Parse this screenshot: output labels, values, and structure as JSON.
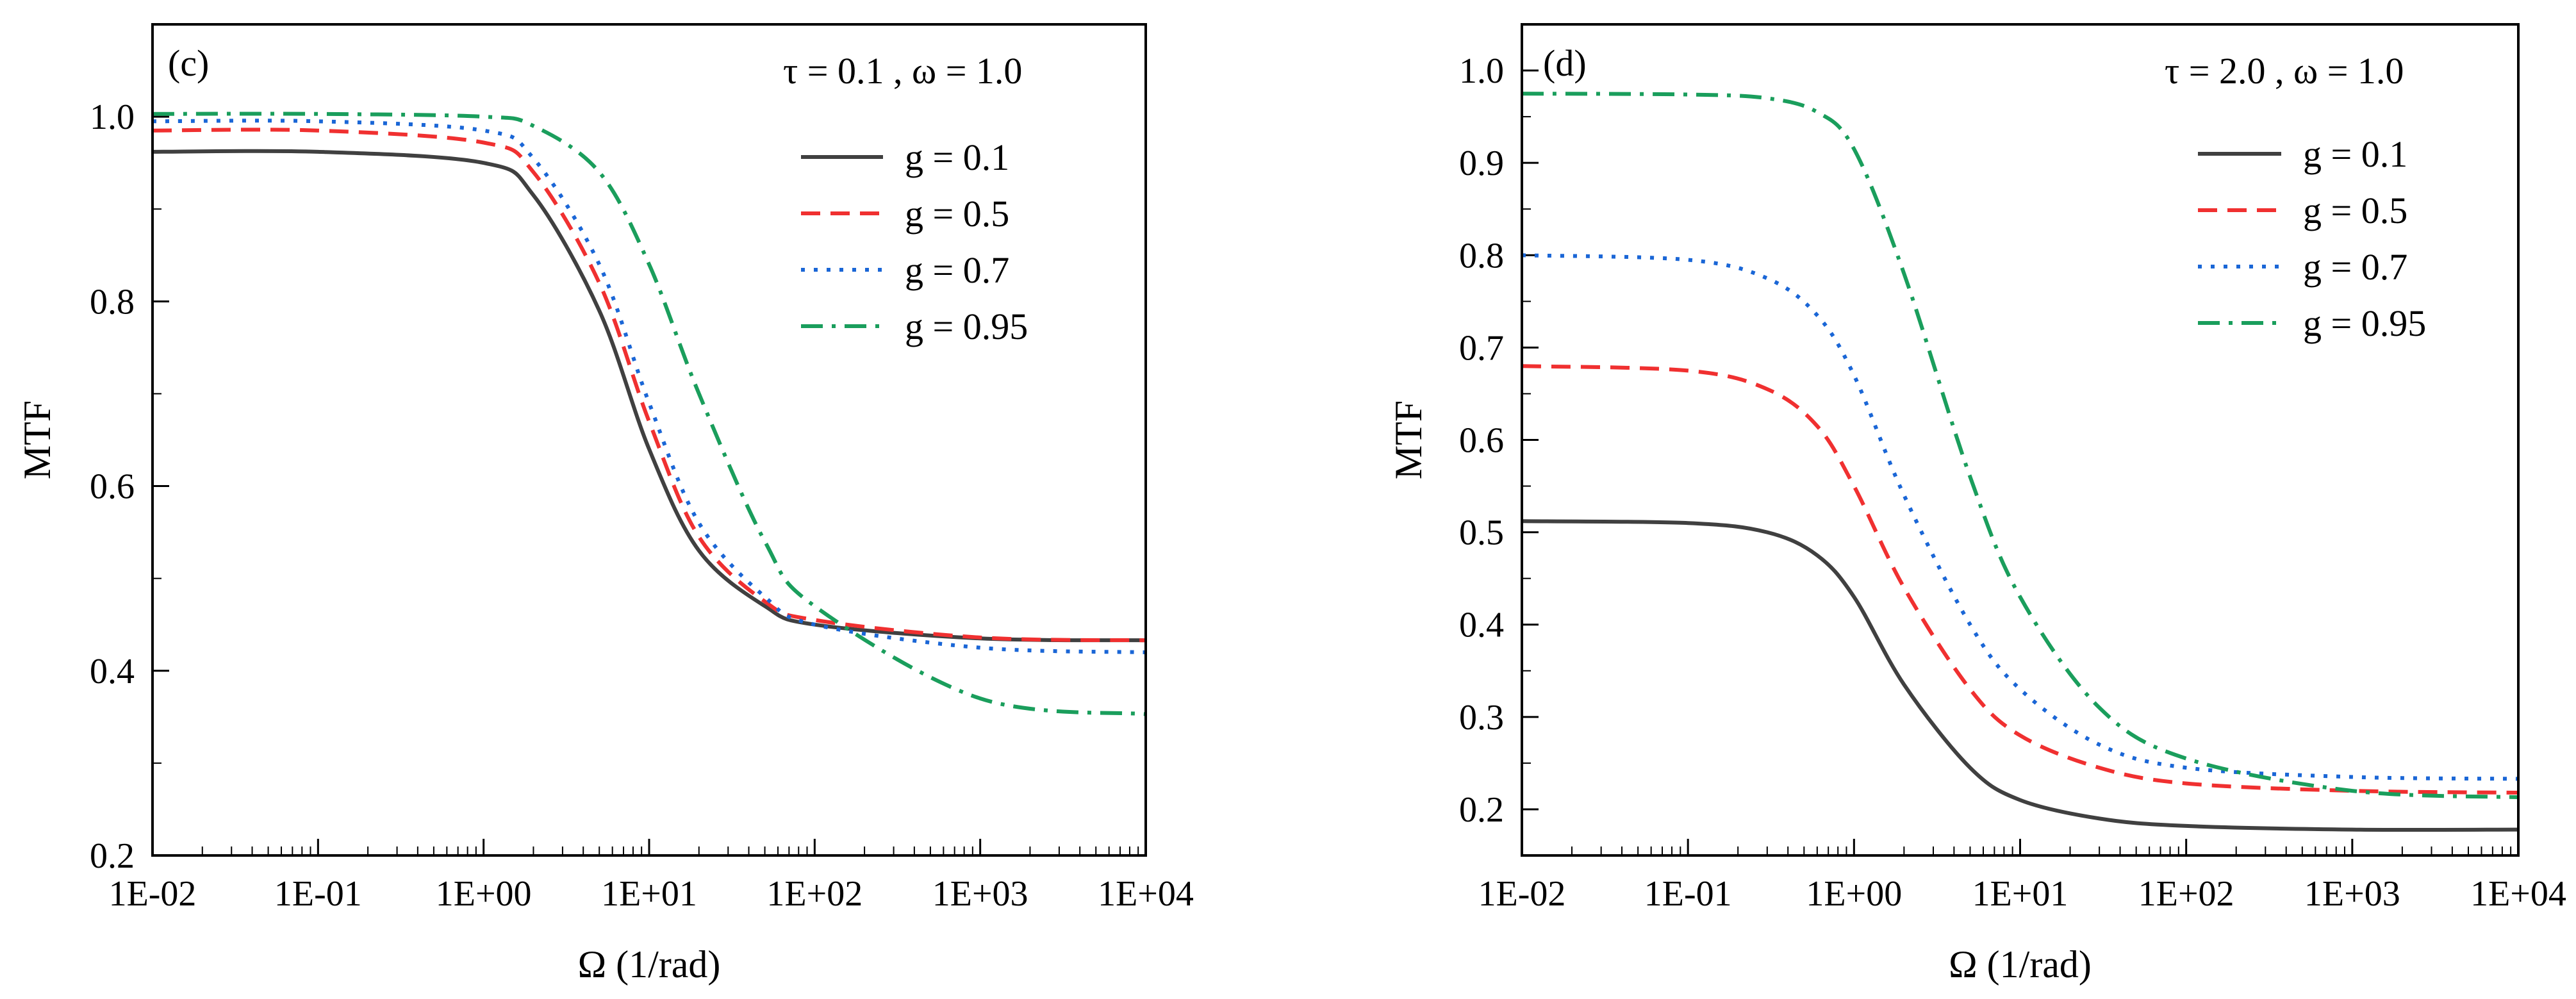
{
  "chart_data": [
    {
      "type": "line",
      "panel_label": "(c)",
      "annotation": "τ = 0.1 , ω = 1.0",
      "xlabel": "Ω (1/rad)",
      "ylabel": "MTF",
      "xscale": "log",
      "xlim": [
        0.01,
        10000
      ],
      "ylim": [
        0.2,
        1.1
      ],
      "x_ticks": [
        0.01,
        0.1,
        1,
        10,
        100,
        1000,
        10000
      ],
      "x_tick_labels": [
        "1E-02",
        "1E-01",
        "1E+00",
        "1E+01",
        "1E+02",
        "1E+03",
        "1E+04"
      ],
      "y_ticks": [
        0.2,
        0.4,
        0.6,
        0.8,
        1.0
      ],
      "y_tick_labels": [
        "0.2",
        "0.4",
        "0.6",
        "0.8",
        "1.0"
      ],
      "legend_position": "top-right",
      "series": [
        {
          "name": "g = 0.1",
          "color": "#404040",
          "dash": "solid",
          "x": [
            0.01,
            0.1,
            1,
            2,
            5,
            10,
            20,
            50,
            100,
            1000,
            10000
          ],
          "y": [
            0.962,
            0.962,
            0.95,
            0.915,
            0.79,
            0.64,
            0.53,
            0.47,
            0.45,
            0.435,
            0.433
          ]
        },
        {
          "name": "g = 0.5",
          "color": "#f03030",
          "dash": "dash",
          "x": [
            0.01,
            0.1,
            1,
            2,
            5,
            10,
            20,
            50,
            100,
            1000,
            10000
          ],
          "y": [
            0.985,
            0.985,
            0.972,
            0.94,
            0.82,
            0.67,
            0.545,
            0.475,
            0.455,
            0.436,
            0.433
          ]
        },
        {
          "name": "g = 0.7",
          "color": "#1a66d6",
          "dash": "dot",
          "x": [
            0.01,
            0.1,
            1,
            2,
            5,
            10,
            20,
            50,
            100,
            1000,
            10000
          ],
          "y": [
            0.995,
            0.995,
            0.985,
            0.955,
            0.84,
            0.69,
            0.56,
            0.48,
            0.45,
            0.425,
            0.42
          ]
        },
        {
          "name": "g = 0.95",
          "color": "#1a9e5c",
          "dash": "dashdot",
          "x": [
            0.01,
            0.1,
            1,
            2,
            5,
            10,
            20,
            50,
            100,
            1000,
            10000
          ],
          "y": [
            1.003,
            1.003,
            1.0,
            0.99,
            0.94,
            0.84,
            0.7,
            0.54,
            0.47,
            0.37,
            0.353
          ]
        }
      ]
    },
    {
      "type": "line",
      "panel_label": "(d)",
      "annotation": "τ = 2.0 , ω = 1.0",
      "xlabel": "Ω (1/rad)",
      "ylabel": "MTF",
      "xscale": "log",
      "xlim": [
        0.01,
        10000
      ],
      "ylim": [
        0.15,
        1.05
      ],
      "x_ticks": [
        0.01,
        0.1,
        1,
        10,
        100,
        1000,
        10000
      ],
      "x_tick_labels": [
        "1E-02",
        "1E-01",
        "1E+00",
        "1E+01",
        "1E+02",
        "1E+03",
        "1E+04"
      ],
      "y_ticks": [
        0.2,
        0.3,
        0.4,
        0.5,
        0.6,
        0.7,
        0.8,
        0.9,
        1.0
      ],
      "y_tick_labels": [
        "0.2",
        "0.3",
        "0.4",
        "0.5",
        "0.6",
        "0.7",
        "0.8",
        "0.9",
        "1.0"
      ],
      "legend_position": "top-right",
      "series": [
        {
          "name": "g = 0.1",
          "color": "#404040",
          "dash": "solid",
          "x": [
            0.01,
            0.1,
            0.3,
            0.6,
            1,
            2,
            5,
            10,
            30,
            100,
            1000,
            10000
          ],
          "y": [
            0.512,
            0.51,
            0.5,
            0.475,
            0.43,
            0.335,
            0.245,
            0.21,
            0.19,
            0.182,
            0.178,
            0.178
          ]
        },
        {
          "name": "g = 0.5",
          "color": "#f03030",
          "dash": "dash",
          "x": [
            0.01,
            0.1,
            0.3,
            0.6,
            1,
            2,
            5,
            10,
            30,
            100,
            1000,
            10000
          ],
          "y": [
            0.68,
            0.675,
            0.655,
            0.615,
            0.55,
            0.44,
            0.33,
            0.28,
            0.245,
            0.228,
            0.22,
            0.218
          ]
        },
        {
          "name": "g = 0.7",
          "color": "#1a66d6",
          "dash": "dot",
          "x": [
            0.01,
            0.1,
            0.3,
            0.6,
            1,
            2,
            5,
            10,
            30,
            100,
            1000,
            10000
          ],
          "y": [
            0.8,
            0.795,
            0.775,
            0.735,
            0.67,
            0.54,
            0.4,
            0.33,
            0.27,
            0.245,
            0.235,
            0.233
          ]
        },
        {
          "name": "g = 0.95",
          "color": "#1a9e5c",
          "dash": "dashdot",
          "x": [
            0.01,
            0.1,
            0.3,
            0.6,
            1,
            2,
            5,
            10,
            30,
            100,
            1000,
            10000
          ],
          "y": [
            0.975,
            0.974,
            0.97,
            0.955,
            0.915,
            0.78,
            0.56,
            0.43,
            0.31,
            0.255,
            0.22,
            0.213
          ]
        }
      ]
    }
  ]
}
